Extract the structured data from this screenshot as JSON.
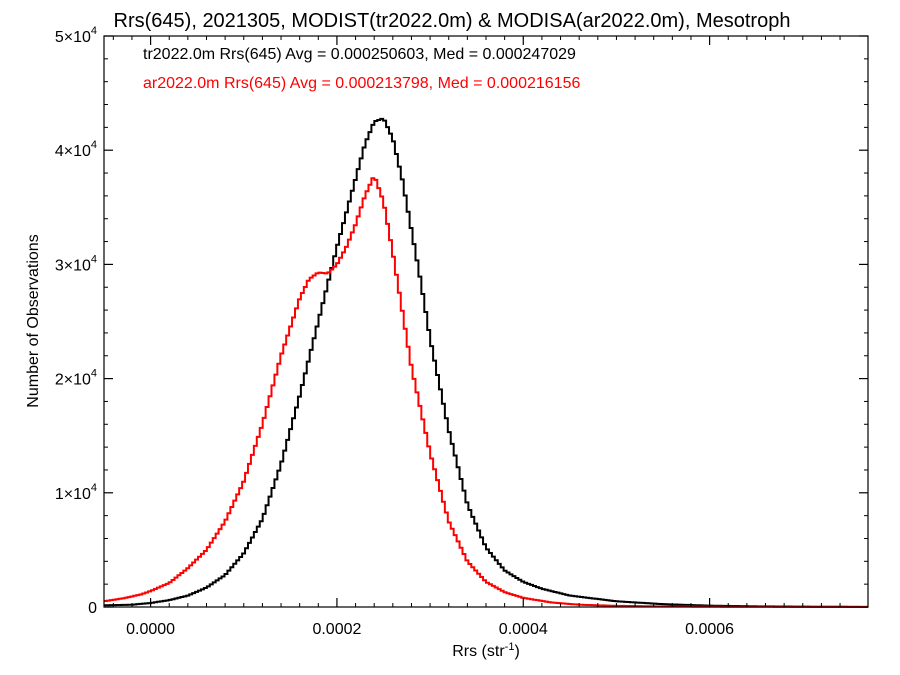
{
  "chart_data": {
    "type": "line",
    "title": "Rrs(645), 2021305, MODIST(tr2022.0m) & MODISA(ar2022.0m), Mesotroph",
    "xlabel_main": "Rrs (str",
    "xlabel_sup": "-1",
    "xlabel_tail": ")",
    "ylabel": "Number of Observations",
    "xlim": [
      -5e-05,
      0.00077
    ],
    "ylim": [
      0,
      50000
    ],
    "xticks": [
      0.0,
      0.0002,
      0.0004,
      0.0006
    ],
    "xtick_labels": [
      "0.0000",
      "0.0002",
      "0.0004",
      "0.0006"
    ],
    "yticks": [
      0,
      10000,
      20000,
      30000,
      40000,
      50000
    ],
    "ytick_labels": [
      {
        "base": "0",
        "exp": ""
      },
      {
        "base": "1×10",
        "exp": "4"
      },
      {
        "base": "2×10",
        "exp": "4"
      },
      {
        "base": "3×10",
        "exp": "4"
      },
      {
        "base": "4×10",
        "exp": "4"
      },
      {
        "base": "5×10",
        "exp": "4"
      }
    ],
    "grid": false,
    "legend_position": "top-left",
    "legend": [
      {
        "text": "tr2022.0m Rrs(645) Avg = 0.000250603, Med = 0.000247029",
        "color": "#000000"
      },
      {
        "text": "ar2022.0m Rrs(645) Avg = 0.000213798, Med = 0.000216156",
        "color": "#ff0000"
      }
    ],
    "series": [
      {
        "color": "#000000",
        "x": [
          -5e-05,
          -2e-05,
          0.0,
          2e-05,
          4e-05,
          6e-05,
          8e-05,
          0.0001,
          0.00012,
          0.00014,
          0.00016,
          0.00018,
          0.0002,
          0.00021,
          0.00022,
          0.00023,
          0.00024,
          0.00025,
          0.00026,
          0.00027,
          0.00028,
          0.00029,
          0.0003,
          0.00032,
          0.00034,
          0.00036,
          0.00038,
          0.0004,
          0.00042,
          0.00045,
          0.0005,
          0.00055,
          0.0006,
          0.00065,
          0.0007,
          0.00077
        ],
        "y": [
          150,
          200,
          350,
          600,
          1000,
          1700,
          2800,
          4700,
          7700,
          12500,
          18500,
          25000,
          31500,
          34500,
          37500,
          40500,
          42500,
          42800,
          41000,
          37500,
          33000,
          28500,
          23500,
          15500,
          9000,
          5200,
          3200,
          2200,
          1600,
          1000,
          500,
          250,
          120,
          60,
          30,
          10
        ]
      },
      {
        "color": "#ff0000",
        "x": [
          -5e-05,
          -3e-05,
          -1e-05,
          0.0,
          2e-05,
          4e-05,
          6e-05,
          8e-05,
          0.0001,
          0.00012,
          0.00014,
          0.00016,
          0.00017,
          0.00018,
          0.00019,
          0.0002,
          0.00021,
          0.00022,
          0.00023,
          0.00024,
          0.00025,
          0.00026,
          0.00027,
          0.00028,
          0.0003,
          0.00032,
          0.00034,
          0.00036,
          0.00038,
          0.0004,
          0.00043,
          0.00046,
          0.0005,
          0.00055,
          0.0006,
          0.00065,
          0.0007,
          0.00077
        ],
        "y": [
          500,
          750,
          1100,
          1400,
          2100,
          3400,
          5000,
          7500,
          11000,
          16000,
          22000,
          27000,
          28700,
          29300,
          29200,
          30000,
          31500,
          33500,
          36000,
          37800,
          35500,
          31000,
          26000,
          21000,
          13500,
          7500,
          4000,
          2200,
          1300,
          800,
          400,
          200,
          100,
          50,
          30,
          20,
          10,
          5
        ]
      }
    ]
  }
}
